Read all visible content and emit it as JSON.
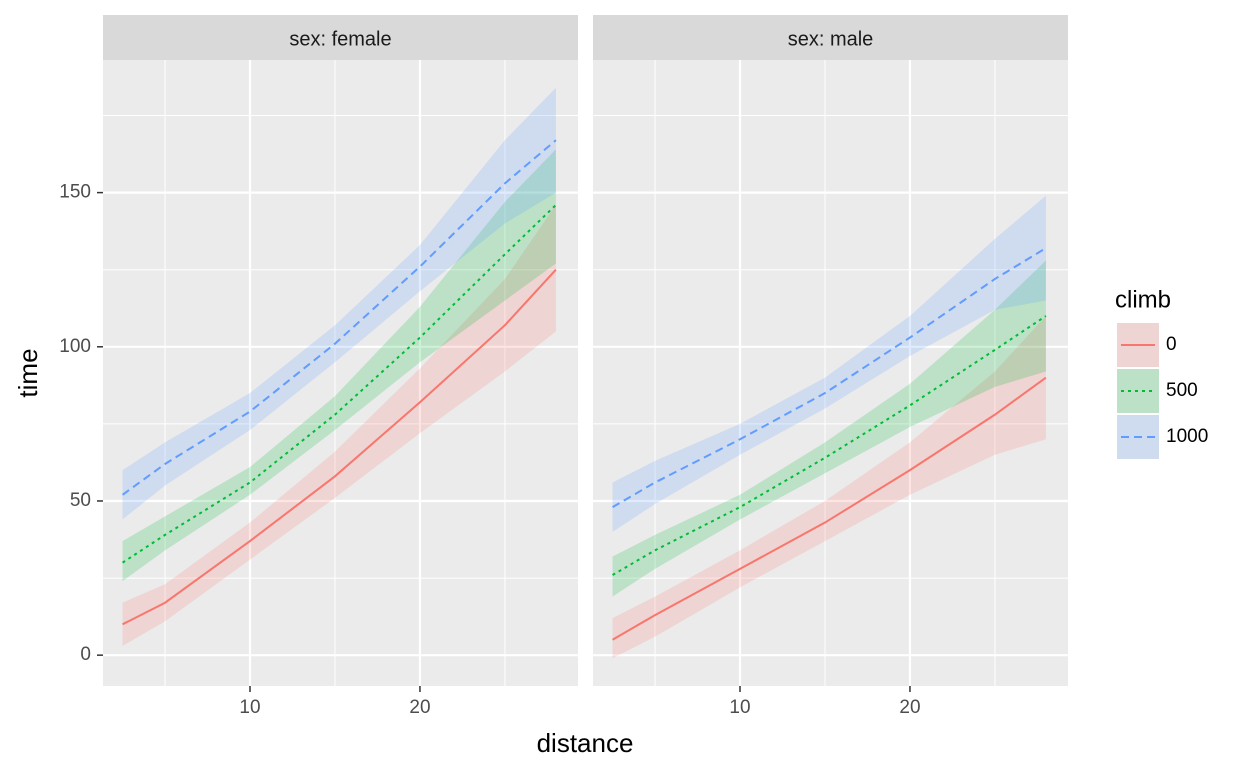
{
  "chart_data": {
    "type": "line",
    "x_label": "distance",
    "y_label": "time",
    "legend_title": "climb",
    "x": [
      2.5,
      5,
      10,
      15,
      20,
      25,
      28
    ],
    "xlim": [
      1.35,
      29.3
    ],
    "xticks": [
      10,
      20
    ],
    "minor_xticks": [
      5,
      15,
      25
    ],
    "ylim": [
      -10,
      193
    ],
    "yticks": [
      0,
      50,
      100,
      150
    ],
    "minor_yticks": [
      25,
      75,
      125,
      175
    ],
    "grid": true,
    "series": [
      {
        "name": "0",
        "color": "#f8766d",
        "dash": "solid"
      },
      {
        "name": "500",
        "color": "#00ba38",
        "dash": "dotted"
      },
      {
        "name": "1000",
        "color": "#619cff",
        "dash": "dashed"
      }
    ],
    "panels": [
      {
        "title": "sex: female",
        "series": [
          {
            "values": [
              10,
              17,
              37,
              58,
              82,
              107,
              125
            ],
            "lower": [
              3,
              11,
              31,
              51,
              72,
              92,
              105
            ],
            "upper": [
              17,
              23,
              43,
              66,
              93,
              122,
              146
            ]
          },
          {
            "values": [
              30,
              39,
              56,
              78,
              103,
              130,
              146
            ],
            "lower": [
              24,
              34,
              52,
              73,
              95,
              115,
              127
            ],
            "upper": [
              37,
              45,
              61,
              84,
              113,
              147,
              164
            ]
          },
          {
            "values": [
              52,
              62,
              79,
              101,
              126,
              153,
              167
            ],
            "lower": [
              44,
              55,
              73,
              95,
              118,
              140,
              150
            ],
            "upper": [
              60,
              69,
              85,
              107,
              133,
              167,
              184
            ]
          }
        ]
      },
      {
        "title": "sex: male",
        "series": [
          {
            "values": [
              5,
              13,
              28,
              43,
              60,
              78,
              90
            ],
            "lower": [
              -1,
              6,
              22,
              37,
              52,
              65,
              70
            ],
            "upper": [
              12,
              19,
              34,
              50,
              69,
              92,
              110
            ]
          },
          {
            "values": [
              26,
              34,
              48,
              64,
              81,
              99,
              110
            ],
            "lower": [
              19,
              28,
              44,
              59,
              74,
              87,
              92
            ],
            "upper": [
              32,
              39,
              52,
              69,
              88,
              112,
              128
            ]
          },
          {
            "values": [
              48,
              56,
              70,
              85,
              103,
              122,
              132
            ],
            "lower": [
              40,
              49,
              65,
              80,
              97,
              112,
              115
            ],
            "upper": [
              56,
              63,
              75,
              90,
              110,
              135,
              149
            ]
          }
        ]
      }
    ]
  }
}
